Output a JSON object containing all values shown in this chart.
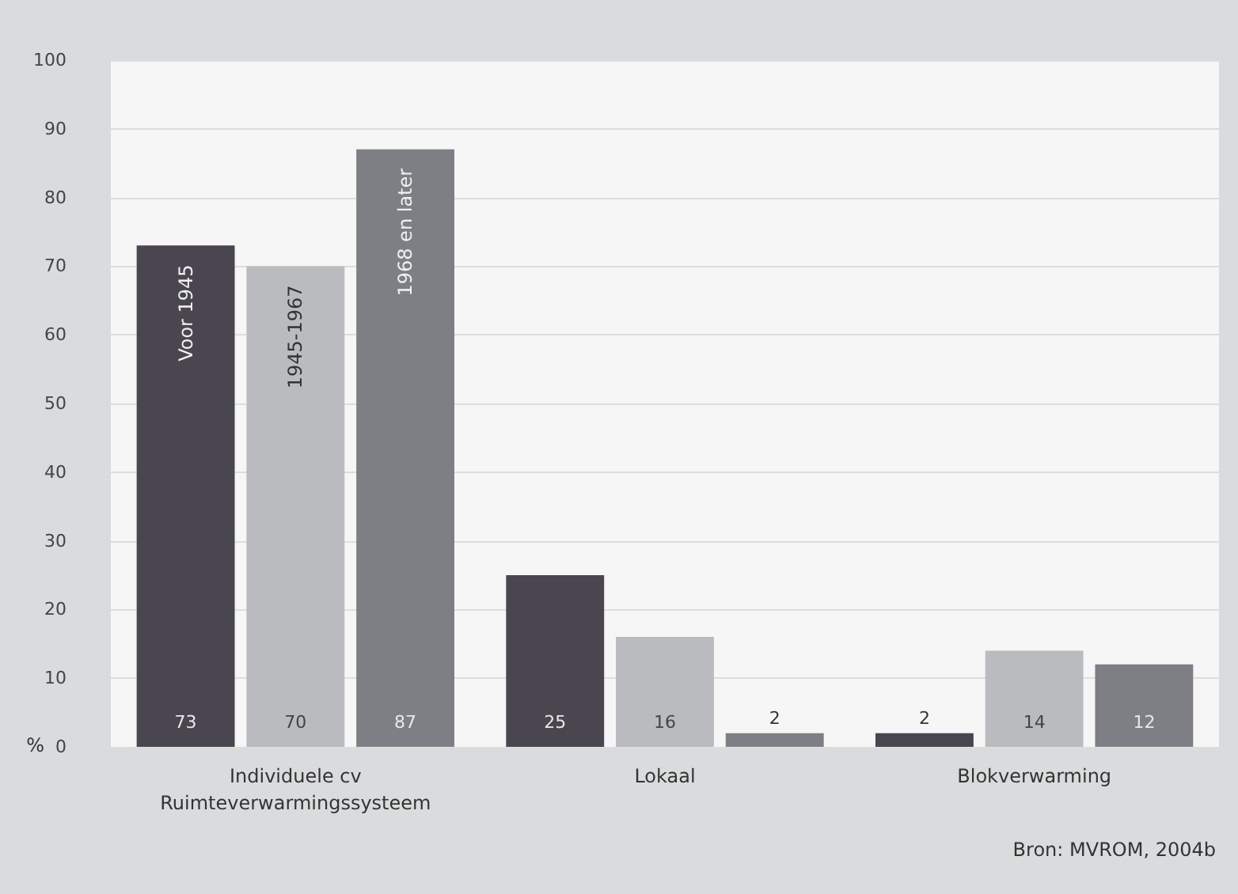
{
  "chart_data": {
    "type": "bar",
    "ylabel": "%",
    "categories": [
      "Individuele cv\nRuimteverwarmingssysteem",
      "Lokaal",
      "Blokverwarming"
    ],
    "series": [
      {
        "name": "Voor 1945",
        "color": "#4a4650",
        "values": [
          73,
          25,
          2
        ]
      },
      {
        "name": "1945-1967",
        "color": "#b9bbbf",
        "values": [
          70,
          16,
          14
        ]
      },
      {
        "name": "1968 en later",
        "color": "#7e7f85",
        "values": [
          87,
          2,
          12
        ]
      }
    ],
    "ylim": [
      0,
      100
    ],
    "yticks": [
      0,
      10,
      20,
      30,
      40,
      50,
      60,
      70,
      80,
      90,
      100
    ],
    "grid": "y",
    "legend": false,
    "data_labels": true,
    "annotations": [
      "Bron: MVROM, 2004b"
    ]
  }
}
